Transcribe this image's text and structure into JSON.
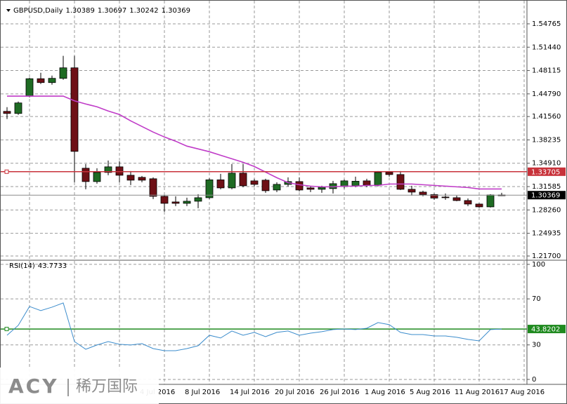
{
  "chart_data": [
    {
      "type": "candlestick",
      "title": "GBPUSD,Daily",
      "categories": [
        null,
        null,
        null,
        null,
        null,
        null,
        null,
        null,
        null,
        null,
        null,
        null,
        "4 Jul 2016",
        null,
        null,
        null,
        "8 Jul 2016",
        null,
        null,
        null,
        "14 Jul 2016",
        null,
        null,
        null,
        "20 Jul 2016",
        null,
        null,
        null,
        "26 Jul 2016",
        null,
        null,
        null,
        "1 Aug 2016",
        null,
        null,
        null,
        "5 Aug 2016",
        null,
        null,
        null,
        "11 Aug 2016",
        null,
        null,
        null,
        "17 Aug 2016"
      ],
      "open": [
        1.423,
        1.42,
        1.4445,
        1.4695,
        1.464,
        1.47,
        1.485,
        1.342,
        1.323,
        1.336,
        1.344,
        1.332,
        1.329,
        1.327,
        1.302,
        1.294,
        1.292,
        1.295,
        1.3,
        1.3255,
        1.314,
        1.335,
        1.324,
        1.325,
        1.311,
        1.319,
        1.323,
        1.314,
        1.312,
        1.313,
        1.316,
        1.317,
        1.324,
        1.318,
        1.336,
        1.333,
        1.312,
        1.308,
        1.3045,
        1.301,
        1.3,
        1.296,
        1.291,
        1.287,
        1.30389
      ],
      "high": [
        1.429,
        1.437,
        1.471,
        1.478,
        1.474,
        1.502,
        1.502,
        1.348,
        1.342,
        1.353,
        1.352,
        1.338,
        1.331,
        1.329,
        1.304,
        1.302,
        1.3,
        1.305,
        1.328,
        1.334,
        1.348,
        1.348,
        1.327,
        1.327,
        1.322,
        1.329,
        1.329,
        1.317,
        1.317,
        1.324,
        1.326,
        1.33,
        1.327,
        1.338,
        1.338,
        1.338,
        1.317,
        1.31,
        1.306,
        1.306,
        1.303,
        1.299,
        1.292,
        1.305,
        1.30697
      ],
      "low": [
        1.412,
        1.418,
        1.443,
        1.462,
        1.461,
        1.468,
        1.322,
        1.312,
        1.32,
        1.332,
        1.322,
        1.318,
        1.322,
        1.298,
        1.28,
        1.288,
        1.288,
        1.285,
        1.298,
        1.312,
        1.312,
        1.315,
        1.316,
        1.307,
        1.308,
        1.316,
        1.309,
        1.308,
        1.307,
        1.306,
        1.313,
        1.315,
        1.315,
        1.316,
        1.33,
        1.311,
        1.303,
        1.302,
        1.297,
        1.297,
        1.295,
        1.288,
        1.286,
        1.286,
        1.30242
      ],
      "close": [
        1.42,
        1.435,
        1.4695,
        1.464,
        1.47,
        1.485,
        1.366,
        1.323,
        1.336,
        1.344,
        1.332,
        1.325,
        1.325,
        1.302,
        1.292,
        1.292,
        1.295,
        1.3,
        1.3255,
        1.314,
        1.335,
        1.317,
        1.319,
        1.31,
        1.319,
        1.323,
        1.311,
        1.312,
        1.315,
        1.32,
        1.324,
        1.3235,
        1.318,
        1.336,
        1.333,
        1.312,
        1.308,
        1.3045,
        1.2995,
        1.3,
        1.296,
        1.291,
        1.287,
        1.304,
        1.30369
      ],
      "up_color": "#1e6b23",
      "down_color": "#6e1016",
      "ma": {
        "color": "#c03cc8",
        "values": [
          1.4447,
          1.4447,
          1.4447,
          1.4447,
          1.4447,
          1.4447,
          1.438,
          1.4335,
          1.4295,
          1.4235,
          1.4185,
          1.4095,
          1.4015,
          1.3935,
          1.3865,
          1.3805,
          1.3735,
          1.3695,
          1.3655,
          1.3605,
          1.3555,
          1.3505,
          1.3445,
          1.3365,
          1.3285,
          1.3215,
          1.3185,
          1.3165,
          1.3155,
          1.3155,
          1.3165,
          1.3165,
          1.3175,
          1.3175,
          1.3195,
          1.3195,
          1.3195,
          1.3185,
          1.3175,
          1.3165,
          1.3155,
          1.3145,
          1.3125,
          1.3125,
          1.3125
        ]
      },
      "hline": {
        "value": 1.33705,
        "color": "#c8323a"
      },
      "ylim": [
        1.212,
        1.5736
      ],
      "yticks": [
        1.54765,
        {
          "value": 1.5144,
          "label": "1.51440"
        },
        1.48115,
        {
          "value": 1.4479,
          "label": "1.44790"
        },
        {
          "value": 1.4156,
          "label": "1.41560"
        },
        1.38235,
        {
          "value": 1.3491,
          "label": "1.34910"
        },
        1.31585,
        {
          "value": 1.2826,
          "label": "1.28260"
        },
        1.24935,
        {
          "value": 1.217,
          "label": "1.21700"
        }
      ],
      "grid": true
    },
    {
      "type": "line",
      "title": "RSI(14)",
      "color": "#3b8ccc",
      "values": [
        38.4,
        47,
        63.4,
        59.8,
        62.8,
        66.5,
        32.9,
        26.2,
        29.9,
        32.9,
        30.5,
        29.9,
        31.1,
        26.8,
        25,
        25,
        26.8,
        29.3,
        38.4,
        36,
        42.1,
        38.4,
        40.9,
        37.2,
        40.9,
        42.1,
        38.4,
        40.2,
        41.5,
        43.3,
        43.9,
        43.3,
        44.5,
        49.4,
        47.6,
        40.9,
        39,
        39,
        37.8,
        37.8,
        36.6,
        34.8,
        33.5,
        43.3,
        43.7733
      ],
      "level": 43.8202,
      "level_color": "#1f8a1f",
      "ylim": [
        -4.3,
        103
      ],
      "yticks": [
        0,
        30,
        70,
        100
      ],
      "grid": true
    }
  ],
  "watermark": {
    "brand": "ACY",
    "name": "稀万国际"
  }
}
